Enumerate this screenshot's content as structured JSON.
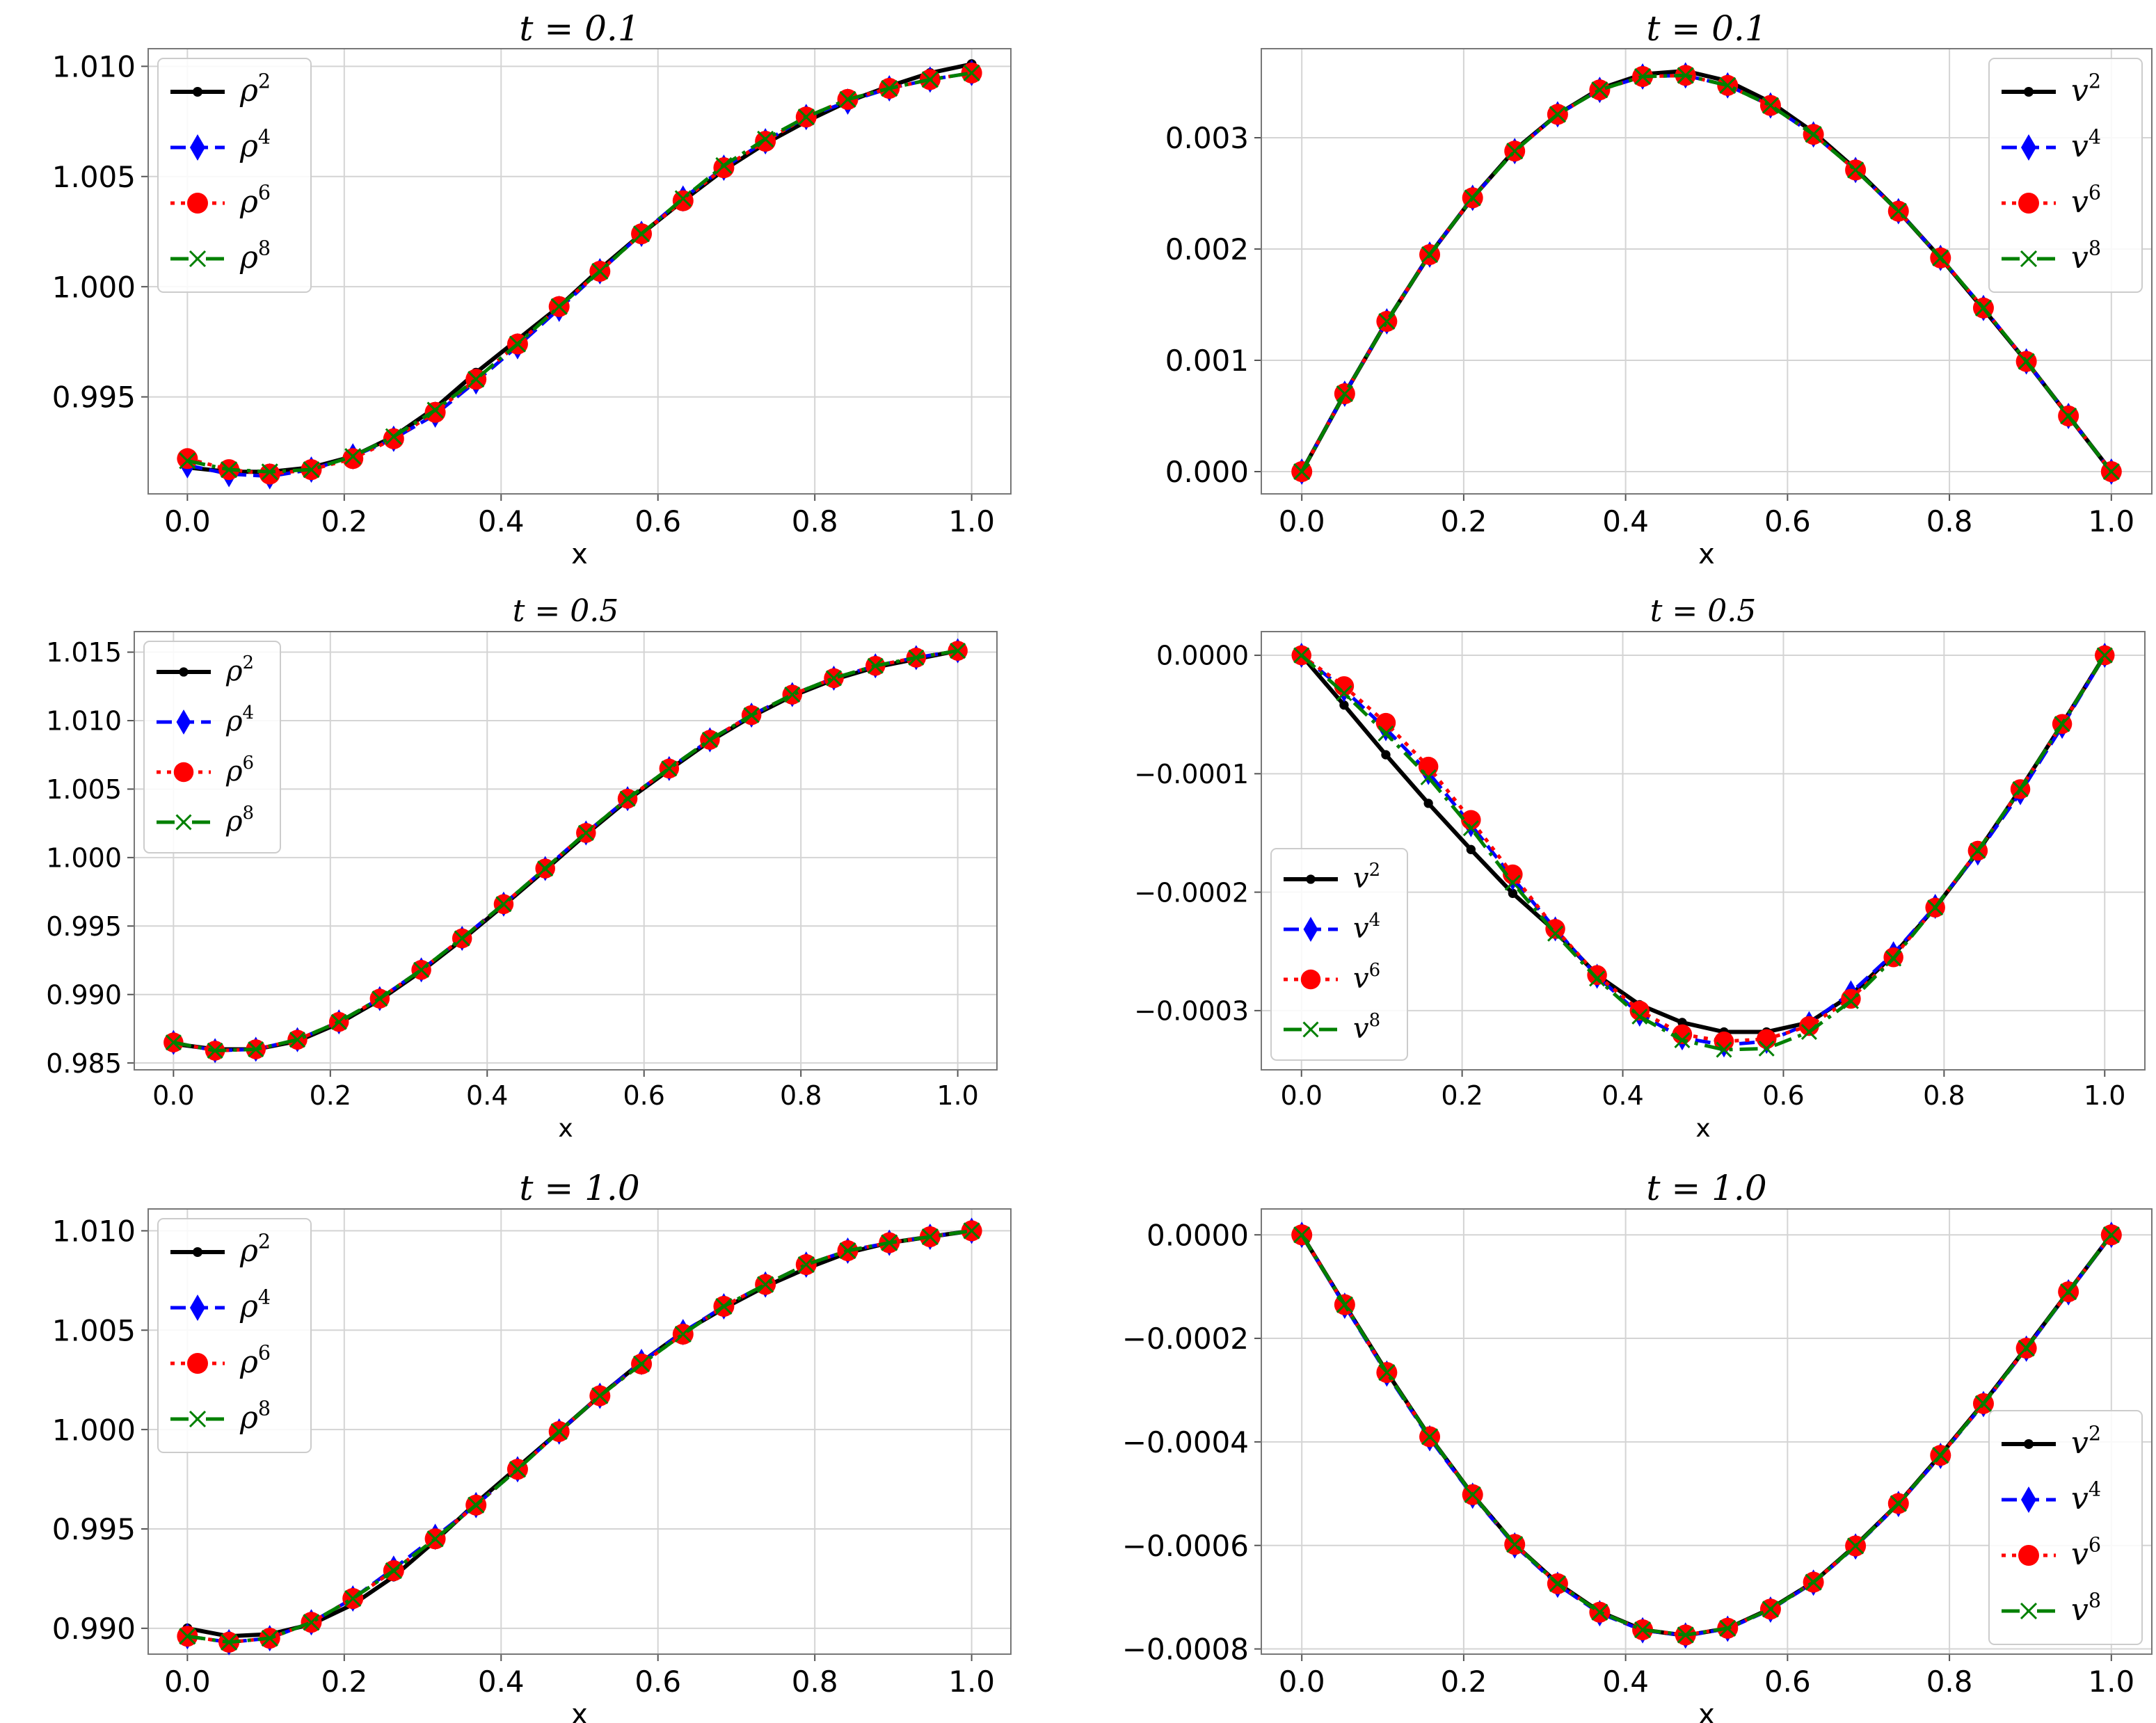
{
  "figure": {
    "description": "Six-panel comparison of density and velocity solutions"
  },
  "colors": {
    "s2": "#000000",
    "s4": "#0000ff",
    "s6": "#ff0000",
    "s8": "#008000"
  },
  "chart_data": [
    {
      "type": "line",
      "title": "t = 0.1",
      "xlabel": "x",
      "ylabel": "",
      "xlim": [
        -0.05,
        1.05
      ],
      "ylim": [
        0.9906,
        1.0108
      ],
      "xticks": [
        0.0,
        0.2,
        0.4,
        0.6,
        0.8,
        1.0
      ],
      "xtick_labels": [
        "0.0",
        "0.2",
        "0.4",
        "0.6",
        "0.8",
        "1.0"
      ],
      "yticks": [
        0.995,
        1.0,
        1.005,
        1.01
      ],
      "ytick_labels": [
        "0.995",
        "1.000",
        "1.005",
        "1.010"
      ],
      "legend_position": "top-left",
      "legend_base": "ρ",
      "x": [
        0.0,
        0.053,
        0.105,
        0.158,
        0.211,
        0.263,
        0.316,
        0.368,
        0.421,
        0.474,
        0.526,
        0.579,
        0.632,
        0.684,
        0.737,
        0.789,
        0.842,
        0.895,
        0.947,
        1.0
      ],
      "series": [
        {
          "name": "ρ2",
          "sup": "2",
          "values": [
            0.9918,
            0.9916,
            0.9916,
            0.9918,
            0.9923,
            0.9932,
            0.9945,
            0.9961,
            0.9976,
            0.9991,
            1.0008,
            1.0024,
            1.0039,
            1.0053,
            1.0065,
            1.0075,
            1.0084,
            1.0091,
            1.0097,
            1.0101
          ]
        },
        {
          "name": "ρ4",
          "sup": "4",
          "values": [
            0.9919,
            0.9915,
            0.9914,
            0.9917,
            0.9923,
            0.9931,
            0.9942,
            0.9957,
            0.9973,
            0.999,
            1.0007,
            1.0024,
            1.004,
            1.0054,
            1.0066,
            1.0077,
            1.0084,
            1.009,
            1.0094,
            1.0097
          ]
        },
        {
          "name": "ρ6",
          "sup": "6",
          "values": [
            0.9922,
            0.9917,
            0.9915,
            0.9917,
            0.9922,
            0.9931,
            0.9943,
            0.9958,
            0.9974,
            0.9991,
            1.0007,
            1.0024,
            1.0039,
            1.0054,
            1.0066,
            1.0077,
            1.0085,
            1.009,
            1.0094,
            1.0097
          ]
        },
        {
          "name": "ρ8",
          "sup": "8",
          "values": [
            0.9921,
            0.9917,
            0.9916,
            0.9917,
            0.9923,
            0.9932,
            0.9944,
            0.9958,
            0.9974,
            0.9991,
            1.0007,
            1.0024,
            1.004,
            1.0055,
            1.0067,
            1.0077,
            1.0085,
            1.009,
            1.0094,
            1.0097
          ]
        }
      ]
    },
    {
      "type": "line",
      "title": "t = 0.1",
      "xlabel": "x",
      "ylabel": "",
      "xlim": [
        -0.05,
        1.05
      ],
      "ylim": [
        -0.0002,
        0.0038
      ],
      "xticks": [
        0.0,
        0.2,
        0.4,
        0.6,
        0.8,
        1.0
      ],
      "xtick_labels": [
        "0.0",
        "0.2",
        "0.4",
        "0.6",
        "0.8",
        "1.0"
      ],
      "yticks": [
        0.0,
        0.001,
        0.002,
        0.003
      ],
      "ytick_labels": [
        "0.000",
        "0.001",
        "0.002",
        "0.003"
      ],
      "legend_position": "top-right",
      "legend_base": "v",
      "x": [
        0.0,
        0.053,
        0.105,
        0.158,
        0.211,
        0.263,
        0.316,
        0.368,
        0.421,
        0.474,
        0.526,
        0.579,
        0.632,
        0.684,
        0.737,
        0.789,
        0.842,
        0.895,
        0.947,
        1.0
      ],
      "series": [
        {
          "name": "v2",
          "sup": "2",
          "values": [
            0.0,
            0.0007,
            0.00135,
            0.00195,
            0.00246,
            0.00289,
            0.00321,
            0.00344,
            0.00357,
            0.0036,
            0.00351,
            0.00332,
            0.00305,
            0.00272,
            0.00234,
            0.00192,
            0.00146,
            0.00099,
            0.0005,
            0.0
          ]
        },
        {
          "name": "v4",
          "sup": "4",
          "values": [
            0.0,
            0.0007,
            0.00135,
            0.00195,
            0.00246,
            0.00288,
            0.00321,
            0.00343,
            0.00355,
            0.00356,
            0.00347,
            0.00329,
            0.00303,
            0.00271,
            0.00234,
            0.00192,
            0.00147,
            0.00099,
            0.0005,
            0.0
          ]
        },
        {
          "name": "v6",
          "sup": "6",
          "values": [
            0.0,
            0.0007,
            0.00135,
            0.00195,
            0.00246,
            0.00288,
            0.00321,
            0.00343,
            0.00355,
            0.00356,
            0.00347,
            0.00329,
            0.00303,
            0.00271,
            0.00234,
            0.00192,
            0.00147,
            0.00099,
            0.0005,
            0.0
          ]
        },
        {
          "name": "v8",
          "sup": "8",
          "values": [
            0.0,
            0.0007,
            0.00135,
            0.00195,
            0.00246,
            0.00288,
            0.00321,
            0.00343,
            0.00355,
            0.00356,
            0.00347,
            0.00329,
            0.00303,
            0.00271,
            0.00234,
            0.00192,
            0.00147,
            0.00099,
            0.0005,
            0.0
          ]
        }
      ]
    },
    {
      "type": "line",
      "title": "t = 0.5",
      "xlabel": "x",
      "ylabel": "",
      "xlim": [
        -0.05,
        1.05
      ],
      "ylim": [
        0.9845,
        1.0165
      ],
      "xticks": [
        0.0,
        0.2,
        0.4,
        0.6,
        0.8,
        1.0
      ],
      "xtick_labels": [
        "0.0",
        "0.2",
        "0.4",
        "0.6",
        "0.8",
        "1.0"
      ],
      "yticks": [
        0.985,
        0.99,
        0.995,
        1.0,
        1.005,
        1.01,
        1.015
      ],
      "ytick_labels": [
        "0.985",
        "0.990",
        "0.995",
        "1.000",
        "1.005",
        "1.010",
        "1.015"
      ],
      "legend_position": "top-left",
      "legend_base": "ρ",
      "x": [
        0.0,
        0.053,
        0.105,
        0.158,
        0.211,
        0.263,
        0.316,
        0.368,
        0.421,
        0.474,
        0.526,
        0.579,
        0.632,
        0.684,
        0.737,
        0.789,
        0.842,
        0.895,
        0.947,
        1.0
      ],
      "series": [
        {
          "name": "ρ2",
          "sup": "2",
          "values": [
            0.9864,
            0.986,
            0.986,
            0.9866,
            0.9879,
            0.9896,
            0.9917,
            0.994,
            0.9965,
            0.9991,
            1.0017,
            1.0042,
            1.0064,
            1.0085,
            1.0103,
            1.0118,
            1.013,
            1.0139,
            1.0145,
            1.0151
          ]
        },
        {
          "name": "ρ4",
          "sup": "4",
          "values": [
            0.9865,
            0.9859,
            0.986,
            0.9867,
            0.988,
            0.9897,
            0.9918,
            0.9941,
            0.9966,
            0.9992,
            1.0018,
            1.0043,
            1.0065,
            1.0086,
            1.0104,
            1.0119,
            1.0131,
            1.014,
            1.0146,
            1.0151
          ]
        },
        {
          "name": "ρ6",
          "sup": "6",
          "values": [
            0.9865,
            0.9859,
            0.986,
            0.9867,
            0.988,
            0.9897,
            0.9918,
            0.9941,
            0.9966,
            0.9992,
            1.0018,
            1.0043,
            1.0065,
            1.0086,
            1.0104,
            1.0119,
            1.0131,
            1.014,
            1.0146,
            1.0151
          ]
        },
        {
          "name": "ρ8",
          "sup": "8",
          "values": [
            0.9865,
            0.9859,
            0.986,
            0.9867,
            0.988,
            0.9897,
            0.9918,
            0.9941,
            0.9966,
            0.9992,
            1.0018,
            1.0043,
            1.0065,
            1.0086,
            1.0104,
            1.0119,
            1.0131,
            1.014,
            1.0146,
            1.0151
          ]
        }
      ]
    },
    {
      "type": "line",
      "title": "t = 0.5",
      "xlabel": "x",
      "ylabel": "",
      "xlim": [
        -0.05,
        1.05
      ],
      "ylim": [
        -0.00035,
        2e-05
      ],
      "xticks": [
        0.0,
        0.2,
        0.4,
        0.6,
        0.8,
        1.0
      ],
      "xtick_labels": [
        "0.0",
        "0.2",
        "0.4",
        "0.6",
        "0.8",
        "1.0"
      ],
      "yticks": [
        0.0,
        -0.0001,
        -0.0002,
        -0.0003
      ],
      "ytick_labels": [
        "0.0000",
        "−0.0001",
        "−0.0002",
        "−0.0003"
      ],
      "legend_position": "bottom-left",
      "legend_base": "v",
      "x": [
        0.0,
        0.053,
        0.105,
        0.158,
        0.211,
        0.263,
        0.316,
        0.368,
        0.421,
        0.474,
        0.526,
        0.579,
        0.632,
        0.684,
        0.737,
        0.789,
        0.842,
        0.895,
        0.947,
        1.0
      ],
      "series": [
        {
          "name": "v2",
          "sup": "2",
          "values": [
            0.0,
            -4.2e-05,
            -8.4e-05,
            -0.000125,
            -0.000164,
            -0.000201,
            -0.000233,
            -0.00027,
            -0.000295,
            -0.00031,
            -0.000318,
            -0.000318,
            -0.00031,
            -0.000287,
            -0.000253,
            -0.000213,
            -0.000166,
            -0.000113,
            -5.8e-05,
            0.0
          ]
        },
        {
          "name": "v4",
          "sup": "4",
          "values": [
            0.0,
            -2.9e-05,
            -6.2e-05,
            -9.9e-05,
            -0.000143,
            -0.000188,
            -0.000231,
            -0.000271,
            -0.000303,
            -0.000323,
            -0.000329,
            -0.000326,
            -0.000311,
            -0.000285,
            -0.000252,
            -0.000212,
            -0.000167,
            -0.000116,
            -6e-05,
            0.0
          ]
        },
        {
          "name": "v6",
          "sup": "6",
          "values": [
            0.0,
            -2.6e-05,
            -5.7e-05,
            -9.4e-05,
            -0.000139,
            -0.000185,
            -0.000231,
            -0.00027,
            -0.0003,
            -0.00032,
            -0.000326,
            -0.000324,
            -0.000313,
            -0.00029,
            -0.000255,
            -0.000213,
            -0.000165,
            -0.000113,
            -5.8e-05,
            0.0
          ]
        },
        {
          "name": "v8",
          "sup": "8",
          "values": [
            0.0,
            -3.2e-05,
            -6.6e-05,
            -0.000103,
            -0.000146,
            -0.000192,
            -0.000235,
            -0.000273,
            -0.000305,
            -0.000325,
            -0.000333,
            -0.000332,
            -0.000318,
            -0.000292,
            -0.000256,
            -0.000213,
            -0.000165,
            -0.000113,
            -5.8e-05,
            0.0
          ]
        }
      ]
    },
    {
      "type": "line",
      "title": "t = 1.0",
      "xlabel": "x",
      "ylabel": "",
      "xlim": [
        -0.05,
        1.05
      ],
      "ylim": [
        0.9887,
        1.0111
      ],
      "xticks": [
        0.0,
        0.2,
        0.4,
        0.6,
        0.8,
        1.0
      ],
      "xtick_labels": [
        "0.0",
        "0.2",
        "0.4",
        "0.6",
        "0.8",
        "1.0"
      ],
      "yticks": [
        0.99,
        0.995,
        1.0,
        1.005,
        1.01
      ],
      "ytick_labels": [
        "0.990",
        "0.995",
        "1.000",
        "1.005",
        "1.010"
      ],
      "legend_position": "top-left",
      "legend_base": "ρ",
      "x": [
        0.0,
        0.053,
        0.105,
        0.158,
        0.211,
        0.263,
        0.316,
        0.368,
        0.421,
        0.474,
        0.526,
        0.579,
        0.632,
        0.684,
        0.737,
        0.789,
        0.842,
        0.895,
        0.947,
        1.0
      ],
      "series": [
        {
          "name": "ρ2",
          "sup": "2",
          "values": [
            0.99,
            0.9896,
            0.9897,
            0.9902,
            0.9912,
            0.9926,
            0.9944,
            0.9963,
            0.9981,
            0.9999,
            1.0017,
            1.0034,
            1.0049,
            1.0061,
            1.0072,
            1.0081,
            1.0089,
            1.0094,
            1.0097,
            1.01
          ]
        },
        {
          "name": "ρ4",
          "sup": "4",
          "values": [
            0.9896,
            0.9893,
            0.9895,
            0.9903,
            0.9915,
            0.993,
            0.9946,
            0.9962,
            0.998,
            0.9999,
            1.0017,
            1.0034,
            1.0049,
            1.0062,
            1.0073,
            1.0083,
            1.009,
            1.0094,
            1.0097,
            1.01
          ]
        },
        {
          "name": "ρ6",
          "sup": "6",
          "values": [
            0.9896,
            0.9893,
            0.9895,
            0.9903,
            0.9915,
            0.9929,
            0.9945,
            0.9962,
            0.998,
            0.9999,
            1.0017,
            1.0033,
            1.0048,
            1.0062,
            1.0073,
            1.0083,
            1.009,
            1.0094,
            1.0097,
            1.01
          ]
        },
        {
          "name": "ρ8",
          "sup": "8",
          "values": [
            0.9896,
            0.9893,
            0.9895,
            0.9903,
            0.9915,
            0.9929,
            0.9945,
            0.9962,
            0.998,
            0.9999,
            1.0017,
            1.0033,
            1.0048,
            1.0062,
            1.0073,
            1.0083,
            1.009,
            1.0094,
            1.0097,
            1.01
          ]
        }
      ]
    },
    {
      "type": "line",
      "title": "t = 1.0",
      "xlabel": "x",
      "ylabel": "",
      "xlim": [
        -0.05,
        1.05
      ],
      "ylim": [
        -0.00081,
        5e-05
      ],
      "xticks": [
        0.0,
        0.2,
        0.4,
        0.6,
        0.8,
        1.0
      ],
      "xtick_labels": [
        "0.0",
        "0.2",
        "0.4",
        "0.6",
        "0.8",
        "1.0"
      ],
      "yticks": [
        0.0,
        -0.0002,
        -0.0004,
        -0.0006,
        -0.0008
      ],
      "ytick_labels": [
        "0.0000",
        "−0.0002",
        "−0.0004",
        "−0.0006",
        "−0.0008"
      ],
      "legend_position": "bottom-right",
      "legend_base": "v",
      "x": [
        0.0,
        0.053,
        0.105,
        0.158,
        0.211,
        0.263,
        0.316,
        0.368,
        0.421,
        0.474,
        0.526,
        0.579,
        0.632,
        0.684,
        0.737,
        0.789,
        0.842,
        0.895,
        0.947,
        1.0
      ],
      "series": [
        {
          "name": "v2",
          "sup": "2",
          "values": [
            0.0,
            -0.000135,
            -0.000265,
            -0.00039,
            -0.000502,
            -0.000598,
            -0.000673,
            -0.000728,
            -0.000763,
            -0.000774,
            -0.00076,
            -0.000722,
            -0.000671,
            -0.0006,
            -0.000519,
            -0.000425,
            -0.000325,
            -0.000218,
            -0.00011,
            0.0
          ]
        },
        {
          "name": "v4",
          "sup": "4",
          "values": [
            0.0,
            -0.000137,
            -0.000268,
            -0.000393,
            -0.000504,
            -0.0006,
            -0.000676,
            -0.000731,
            -0.000764,
            -0.000774,
            -0.000761,
            -0.000724,
            -0.000672,
            -0.000602,
            -0.00052,
            -0.000427,
            -0.000327,
            -0.00022,
            -0.000111,
            0.0
          ]
        },
        {
          "name": "v6",
          "sup": "6",
          "values": [
            0.0,
            -0.000135,
            -0.000266,
            -0.00039,
            -0.000502,
            -0.000598,
            -0.000674,
            -0.000729,
            -0.000763,
            -0.000773,
            -0.00076,
            -0.000723,
            -0.000671,
            -0.000601,
            -0.000519,
            -0.000426,
            -0.000326,
            -0.000219,
            -0.00011,
            0.0
          ]
        },
        {
          "name": "v8",
          "sup": "8",
          "values": [
            0.0,
            -0.000135,
            -0.000266,
            -0.00039,
            -0.000502,
            -0.000598,
            -0.000674,
            -0.000729,
            -0.000763,
            -0.000773,
            -0.00076,
            -0.000723,
            -0.000671,
            -0.000601,
            -0.000519,
            -0.000426,
            -0.000326,
            -0.000219,
            -0.00011,
            0.0
          ]
        }
      ]
    }
  ]
}
